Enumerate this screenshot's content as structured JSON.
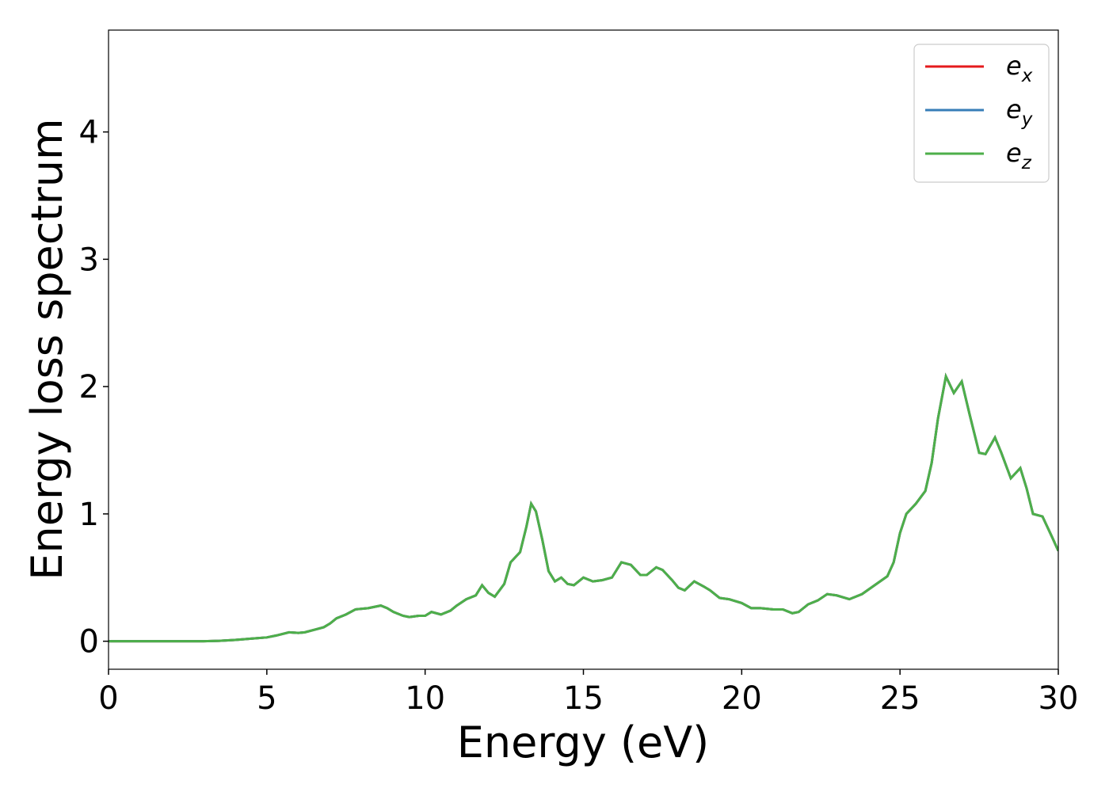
{
  "chart_data": {
    "type": "line",
    "xlabel": "Energy (eV)",
    "ylabel": "Energy loss spectrum",
    "xlim": [
      0,
      30
    ],
    "ylim": [
      -0.22,
      4.8
    ],
    "xticks": [
      0,
      5,
      10,
      15,
      20,
      25,
      30
    ],
    "yticks": [
      0,
      1,
      2,
      3,
      4
    ],
    "legend": "upper right",
    "x": [
      0,
      1,
      2,
      3,
      3.5,
      4,
      4.5,
      5,
      5.3,
      5.7,
      6,
      6.2,
      6.5,
      6.8,
      7,
      7.2,
      7.5,
      7.8,
      8.2,
      8.6,
      8.8,
      9,
      9.3,
      9.5,
      9.8,
      10,
      10.2,
      10.5,
      10.8,
      11,
      11.3,
      11.6,
      11.8,
      12,
      12.2,
      12.5,
      12.7,
      13,
      13.2,
      13.35,
      13.5,
      13.7,
      13.9,
      14.1,
      14.3,
      14.5,
      14.7,
      15,
      15.3,
      15.6,
      15.9,
      16.2,
      16.5,
      16.8,
      17,
      17.3,
      17.5,
      17.8,
      18,
      18.2,
      18.5,
      18.8,
      19,
      19.3,
      19.6,
      20,
      20.3,
      20.6,
      21,
      21.3,
      21.6,
      21.8,
      22.1,
      22.4,
      22.7,
      23,
      23.4,
      23.8,
      24.2,
      24.6,
      24.8,
      25,
      25.2,
      25.5,
      25.8,
      26,
      26.2,
      26.45,
      26.7,
      26.95,
      27.2,
      27.5,
      27.7,
      28,
      28.2,
      28.5,
      28.8,
      29,
      29.2,
      29.5,
      29.8,
      30
    ],
    "series": [
      {
        "name": "e_x",
        "color": "#e41a1c",
        "values": [
          0,
          0,
          0,
          0,
          0.003,
          0.01,
          0.02,
          0.03,
          0.045,
          0.07,
          0.065,
          0.07,
          0.09,
          0.11,
          0.14,
          0.18,
          0.21,
          0.25,
          0.26,
          0.28,
          0.26,
          0.23,
          0.2,
          0.19,
          0.2,
          0.2,
          0.23,
          0.21,
          0.24,
          0.28,
          0.33,
          0.36,
          0.44,
          0.38,
          0.35,
          0.45,
          0.62,
          0.7,
          0.9,
          1.08,
          1.02,
          0.8,
          0.55,
          0.47,
          0.5,
          0.45,
          0.44,
          0.5,
          0.47,
          0.48,
          0.5,
          0.62,
          0.6,
          0.52,
          0.52,
          0.58,
          0.56,
          0.48,
          0.42,
          0.4,
          0.47,
          0.43,
          0.4,
          0.34,
          0.33,
          0.3,
          0.26,
          0.26,
          0.25,
          0.25,
          0.22,
          0.23,
          0.29,
          0.32,
          0.37,
          0.36,
          0.33,
          0.37,
          0.44,
          0.51,
          0.62,
          0.85,
          1.0,
          1.08,
          1.18,
          1.4,
          1.75,
          2.08,
          1.95,
          2.04,
          1.78,
          1.48,
          1.47,
          1.6,
          1.48,
          1.28,
          1.36,
          1.2,
          1.0,
          0.98,
          0.82,
          0.71
        ]
      },
      {
        "name": "e_y",
        "color": "#377eb8",
        "values": [
          0,
          0,
          0,
          0,
          0.003,
          0.01,
          0.02,
          0.03,
          0.045,
          0.07,
          0.065,
          0.07,
          0.09,
          0.11,
          0.14,
          0.18,
          0.21,
          0.25,
          0.26,
          0.28,
          0.26,
          0.23,
          0.2,
          0.19,
          0.2,
          0.2,
          0.23,
          0.21,
          0.24,
          0.28,
          0.33,
          0.36,
          0.44,
          0.38,
          0.35,
          0.45,
          0.62,
          0.7,
          0.9,
          1.08,
          1.02,
          0.8,
          0.55,
          0.47,
          0.5,
          0.45,
          0.44,
          0.5,
          0.47,
          0.48,
          0.5,
          0.62,
          0.6,
          0.52,
          0.52,
          0.58,
          0.56,
          0.48,
          0.42,
          0.4,
          0.47,
          0.43,
          0.4,
          0.34,
          0.33,
          0.3,
          0.26,
          0.26,
          0.25,
          0.25,
          0.22,
          0.23,
          0.29,
          0.32,
          0.37,
          0.36,
          0.33,
          0.37,
          0.44,
          0.51,
          0.62,
          0.85,
          1.0,
          1.08,
          1.18,
          1.4,
          1.75,
          2.08,
          1.95,
          2.04,
          1.78,
          1.48,
          1.47,
          1.6,
          1.48,
          1.28,
          1.36,
          1.2,
          1.0,
          0.98,
          0.82,
          0.71
        ]
      },
      {
        "name": "e_z",
        "color": "#4daf4a",
        "values": [
          0,
          0,
          0,
          0,
          0.003,
          0.01,
          0.02,
          0.03,
          0.045,
          0.07,
          0.065,
          0.07,
          0.09,
          0.11,
          0.14,
          0.18,
          0.21,
          0.25,
          0.26,
          0.28,
          0.26,
          0.23,
          0.2,
          0.19,
          0.2,
          0.2,
          0.23,
          0.21,
          0.24,
          0.28,
          0.33,
          0.36,
          0.44,
          0.38,
          0.35,
          0.45,
          0.62,
          0.7,
          0.9,
          1.08,
          1.02,
          0.8,
          0.55,
          0.47,
          0.5,
          0.45,
          0.44,
          0.5,
          0.47,
          0.48,
          0.5,
          0.62,
          0.6,
          0.52,
          0.52,
          0.58,
          0.56,
          0.48,
          0.42,
          0.4,
          0.47,
          0.43,
          0.4,
          0.34,
          0.33,
          0.3,
          0.26,
          0.26,
          0.25,
          0.25,
          0.22,
          0.23,
          0.29,
          0.32,
          0.37,
          0.36,
          0.33,
          0.37,
          0.44,
          0.51,
          0.62,
          0.85,
          1.0,
          1.08,
          1.18,
          1.4,
          1.75,
          2.08,
          1.95,
          2.04,
          1.78,
          1.48,
          1.47,
          1.6,
          1.48,
          1.28,
          1.36,
          1.2,
          1.0,
          0.98,
          0.82,
          0.71
        ]
      }
    ]
  }
}
